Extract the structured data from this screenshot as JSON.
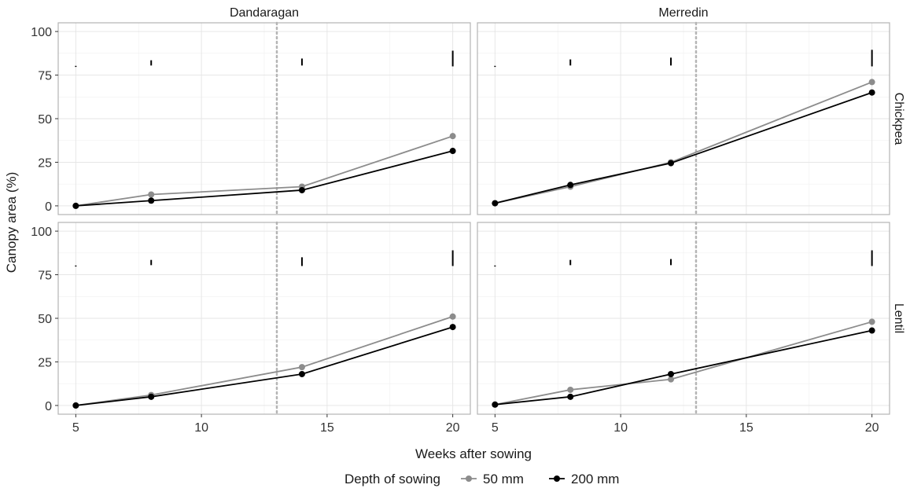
{
  "chart_data": {
    "type": "line",
    "facet_columns": [
      "Dandaragan",
      "Merredin"
    ],
    "facet_rows": [
      "Chickpea",
      "Lentil"
    ],
    "xlabel": "Weeks after sowing",
    "ylabel": "Canopy area (%)",
    "xlim": [
      4.3,
      20.7
    ],
    "ylim": [
      -5,
      105
    ],
    "x_ticks": [
      5,
      10,
      15,
      20
    ],
    "y_ticks": [
      0,
      25,
      50,
      75,
      100
    ],
    "grid": true,
    "reference_line_x": 13,
    "legend": {
      "title": "Depth of sowing",
      "position": "bottom",
      "entries": [
        "50 mm",
        "200 mm"
      ]
    },
    "series_colors": {
      "50 mm": "#8c8c8c",
      "200 mm": "#000000"
    },
    "panels": [
      {
        "column": "Dandaragan",
        "row": "Chickpea",
        "series": [
          {
            "name": "50 mm",
            "x": [
              5,
              8,
              14,
              20
            ],
            "y": [
              0,
              6.5,
              11,
              40
            ]
          },
          {
            "name": "200 mm",
            "x": [
              5,
              8,
              14,
              20
            ],
            "y": [
              0,
              3,
              9,
              31.5
            ]
          }
        ],
        "error_bars": [
          {
            "x": 5,
            "ymin": 79.7,
            "ymax": 80.3
          },
          {
            "x": 8,
            "ymin": 80.5,
            "ymax": 83.5
          },
          {
            "x": 14,
            "ymin": 80.5,
            "ymax": 84.5
          },
          {
            "x": 20,
            "ymin": 80,
            "ymax": 89
          }
        ]
      },
      {
        "column": "Merredin",
        "row": "Chickpea",
        "series": [
          {
            "name": "50 mm",
            "x": [
              5,
              8,
              12,
              20
            ],
            "y": [
              1.5,
              11,
              25,
              71
            ]
          },
          {
            "name": "200 mm",
            "x": [
              5,
              8,
              12,
              20
            ],
            "y": [
              1.5,
              12,
              24.5,
              65
            ]
          }
        ],
        "error_bars": [
          {
            "x": 5,
            "ymin": 79.7,
            "ymax": 80.3
          },
          {
            "x": 8,
            "ymin": 80.5,
            "ymax": 84
          },
          {
            "x": 12,
            "ymin": 80.5,
            "ymax": 85
          },
          {
            "x": 20,
            "ymin": 80,
            "ymax": 89.5
          }
        ]
      },
      {
        "column": "Dandaragan",
        "row": "Lentil",
        "series": [
          {
            "name": "50 mm",
            "x": [
              5,
              8,
              14,
              20
            ],
            "y": [
              0,
              6,
              22,
              51
            ]
          },
          {
            "name": "200 mm",
            "x": [
              5,
              8,
              14,
              20
            ],
            "y": [
              0,
              5,
              18,
              45
            ]
          }
        ],
        "error_bars": [
          {
            "x": 5,
            "ymin": 79.7,
            "ymax": 80.3
          },
          {
            "x": 8,
            "ymin": 80.5,
            "ymax": 83.5
          },
          {
            "x": 14,
            "ymin": 80,
            "ymax": 85
          },
          {
            "x": 20,
            "ymin": 80,
            "ymax": 89
          }
        ]
      },
      {
        "column": "Merredin",
        "row": "Lentil",
        "series": [
          {
            "name": "50 mm",
            "x": [
              5,
              8,
              12,
              20
            ],
            "y": [
              0.5,
              9,
              15,
              48
            ]
          },
          {
            "name": "200 mm",
            "x": [
              5,
              8,
              12,
              20
            ],
            "y": [
              0.5,
              5,
              18,
              43
            ]
          }
        ],
        "error_bars": [
          {
            "x": 5,
            "ymin": 79.7,
            "ymax": 80.3
          },
          {
            "x": 8,
            "ymin": 80.5,
            "ymax": 83.5
          },
          {
            "x": 12,
            "ymin": 80.5,
            "ymax": 84
          },
          {
            "x": 20,
            "ymin": 80,
            "ymax": 89
          }
        ]
      }
    ]
  }
}
